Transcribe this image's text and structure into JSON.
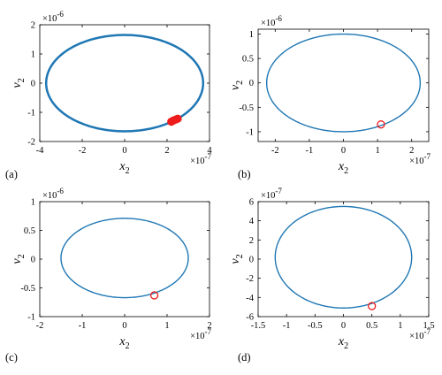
{
  "chart_data": [
    {
      "type": "line",
      "panel_label": "(a)",
      "xlabel": "x",
      "xlabel_sub": "2",
      "ylabel": "v",
      "ylabel_sub": "2",
      "xlim": [
        -4e-07,
        4e-07
      ],
      "ylim": [
        -2e-06,
        2e-06
      ],
      "x_ticks": [
        -4e-07,
        -2e-07,
        0,
        2e-07,
        4e-07
      ],
      "x_tick_labels": [
        "-4",
        "-2",
        "0",
        "2",
        "4"
      ],
      "y_ticks": [
        -2e-06,
        -1e-06,
        0,
        1e-06,
        2e-06
      ],
      "y_tick_labels": [
        "-2",
        "-1",
        "0",
        "1",
        "2"
      ],
      "x_multiplier": {
        "base": "×10",
        "exponent": "-7"
      },
      "y_multiplier": {
        "base": "×10",
        "exponent": "-6"
      },
      "orbit": {
        "x_center": 0,
        "x_amplitude": 3.7e-07,
        "y_center": 0,
        "y_amplitude": 1.65e-06,
        "line_width": 2.5
      },
      "markers": [
        {
          "x": 2.2e-07,
          "y": -1.32e-06
        },
        {
          "x": 2.3e-07,
          "y": -1.28e-06
        },
        {
          "x": 2.4e-07,
          "y": -1.25e-06
        },
        {
          "x": 2.5e-07,
          "y": -1.22e-06
        }
      ],
      "marker_fill": "#ee1c1c"
    },
    {
      "type": "line",
      "panel_label": "(b)",
      "xlabel": "x",
      "xlabel_sub": "2",
      "ylabel": "v",
      "ylabel_sub": "2",
      "xlim": [
        -2.5e-07,
        2.5e-07
      ],
      "ylim": [
        -1.2e-06,
        1.1e-06
      ],
      "x_ticks": [
        -2e-07,
        -1e-07,
        0,
        1e-07,
        2e-07
      ],
      "x_tick_labels": [
        "-2",
        "-1",
        "0",
        "1",
        "2"
      ],
      "y_ticks": [
        -1e-06,
        -5e-07,
        0,
        5e-07,
        1e-06
      ],
      "y_tick_labels": [
        "-1",
        "-0.5",
        "0",
        "0.5",
        "1"
      ],
      "x_multiplier": {
        "base": "×10",
        "exponent": "-7"
      },
      "y_multiplier": {
        "base": "×10",
        "exponent": "-6"
      },
      "orbit": {
        "x_center": 0,
        "x_amplitude": 2.25e-07,
        "y_center": 0,
        "y_amplitude": 1e-06,
        "line_width": 1.4
      },
      "markers": [
        {
          "x": 1.1e-07,
          "y": -8.5e-07
        }
      ],
      "marker_fill": "none"
    },
    {
      "type": "line",
      "panel_label": "(c)",
      "xlabel": "x",
      "xlabel_sub": "2",
      "ylabel": "v",
      "ylabel_sub": "2",
      "xlim": [
        -2e-07,
        2e-07
      ],
      "ylim": [
        -1e-06,
        1e-06
      ],
      "x_ticks": [
        -2e-07,
        -1e-07,
        0,
        1e-07,
        2e-07
      ],
      "x_tick_labels": [
        "-2",
        "-1",
        "0",
        "1",
        "2"
      ],
      "y_ticks": [
        -1e-06,
        -5e-07,
        0,
        5e-07,
        1e-06
      ],
      "y_tick_labels": [
        "-1",
        "-0.5",
        "0",
        "0.5",
        "1"
      ],
      "x_multiplier": {
        "base": "×10",
        "exponent": "-7"
      },
      "y_multiplier": {
        "base": "×10",
        "exponent": "-6"
      },
      "orbit": {
        "x_center": 0,
        "x_amplitude": 1.5e-07,
        "y_center": 2e-08,
        "y_amplitude": 6.9e-07,
        "line_width": 1.4
      },
      "markers": [
        {
          "x": 7e-08,
          "y": -6.3e-07
        }
      ],
      "marker_fill": "none"
    },
    {
      "type": "line",
      "panel_label": "(d)",
      "xlabel": "x",
      "xlabel_sub": "2",
      "ylabel": "v",
      "ylabel_sub": "2",
      "xlim": [
        -1.5e-07,
        1.5e-07
      ],
      "ylim": [
        -6e-07,
        6e-07
      ],
      "x_ticks": [
        -1.5e-07,
        -1e-07,
        -5e-08,
        0,
        5e-08,
        1e-07,
        1.5e-07
      ],
      "x_tick_labels": [
        "-1.5",
        "-1",
        "-0.5",
        "0",
        "0.5",
        "1",
        "1.5"
      ],
      "y_ticks": [
        -6e-07,
        -4e-07,
        -2e-07,
        0,
        2e-07,
        4e-07,
        6e-07
      ],
      "y_tick_labels": [
        "-6",
        "-4",
        "-2",
        "0",
        "2",
        "4",
        "6"
      ],
      "x_multiplier": {
        "base": "×10",
        "exponent": "-7"
      },
      "y_multiplier": {
        "base": "×10",
        "exponent": "-7"
      },
      "orbit": {
        "x_center": 0,
        "x_amplitude": 1.2e-07,
        "y_center": 2e-08,
        "y_amplitude": 5.3e-07,
        "line_width": 1.4
      },
      "markers": [
        {
          "x": 5e-08,
          "y": -4.9e-07
        }
      ],
      "marker_fill": "none"
    }
  ],
  "colors": {
    "orbit": "#1f77b4",
    "marker_edge": "#ee1c1c",
    "axes": "#000000"
  }
}
